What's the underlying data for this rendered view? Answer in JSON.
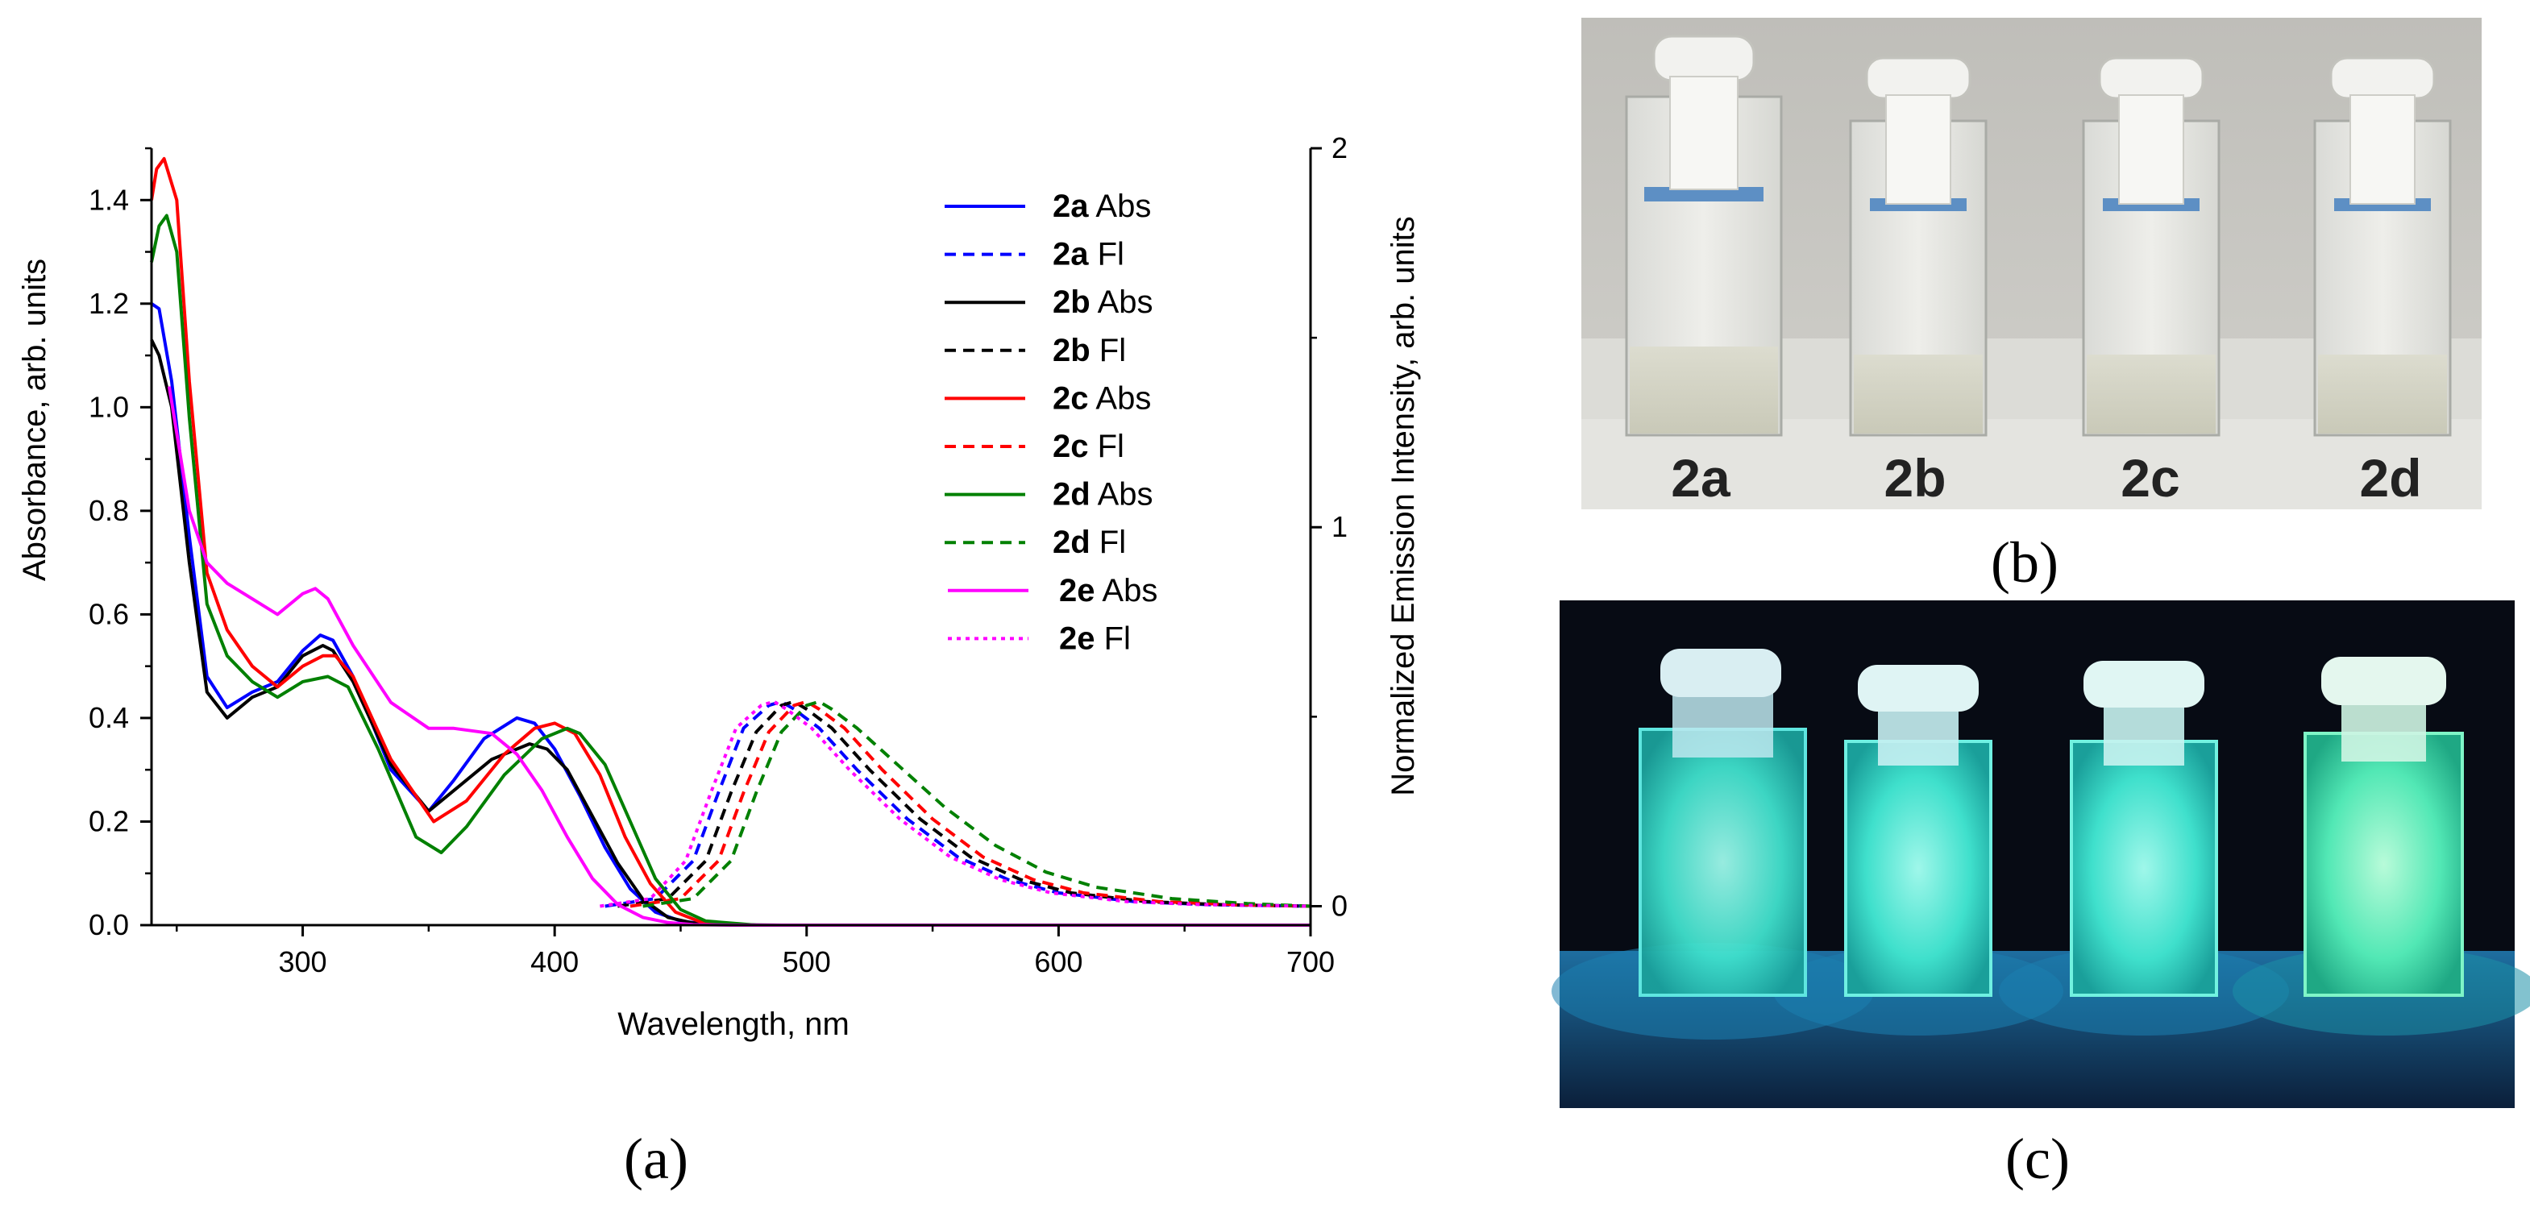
{
  "colors": {
    "2a": "#0000ff",
    "2b": "#000000",
    "2c": "#ff0000",
    "2d": "#008000",
    "2e": "#ff00ff"
  },
  "panels": {
    "a": {
      "label": "(a)"
    },
    "b": {
      "label": "(b)",
      "description_icon": "daylight-cuvettes-photo",
      "vial_labels": [
        "2a",
        "2b",
        "2c",
        "2d"
      ]
    },
    "c": {
      "label": "(c)",
      "description_icon": "uv-fluorescing-cuvettes-photo"
    }
  },
  "chart_data": {
    "type": "line",
    "xlabel": "Wavelength, nm",
    "ylabel": "Absorbance, arb. units",
    "y2label": "Normalized Emission Intensity, arb. units",
    "xlim": [
      240,
      700
    ],
    "ylim": [
      0,
      1.5
    ],
    "y2lim": [
      -0.05,
      2.0
    ],
    "xticks": [
      "300",
      "400",
      "500",
      "600",
      "700"
    ],
    "yticks": [
      "0.0",
      "0.2",
      "0.4",
      "0.6",
      "0.8",
      "1.0",
      "1.2",
      "1.4"
    ],
    "y2ticks": [
      "0",
      "1",
      "2"
    ],
    "grid": false,
    "legend_position": "top-right",
    "series": [
      {
        "name": "2a Abs",
        "compound": "2a",
        "kind": "Abs",
        "axis": "left",
        "style": "solid",
        "x": [
          240,
          243,
          248,
          255,
          262,
          270,
          280,
          290,
          300,
          307,
          312,
          320,
          335,
          350,
          360,
          372,
          385,
          392,
          400,
          410,
          420,
          430,
          440,
          450,
          460,
          480,
          700
        ],
        "y": [
          1.2,
          1.19,
          1.05,
          0.75,
          0.48,
          0.42,
          0.45,
          0.47,
          0.53,
          0.56,
          0.55,
          0.48,
          0.3,
          0.22,
          0.28,
          0.36,
          0.4,
          0.39,
          0.34,
          0.25,
          0.15,
          0.07,
          0.025,
          0.008,
          0.002,
          0.0,
          0.0
        ]
      },
      {
        "name": "2a Fl",
        "compound": "2a",
        "kind": "Fl",
        "axis": "right",
        "style": "dashed",
        "x": [
          420,
          440,
          455,
          465,
          475,
          485,
          490,
          495,
          505,
          520,
          540,
          560,
          580,
          600,
          630,
          660,
          700
        ],
        "y": [
          0,
          0.02,
          0.12,
          0.3,
          0.47,
          0.53,
          0.54,
          0.52,
          0.47,
          0.36,
          0.23,
          0.13,
          0.07,
          0.035,
          0.012,
          0.004,
          0.0
        ]
      },
      {
        "name": "2b Abs",
        "compound": "2b",
        "kind": "Abs",
        "axis": "left",
        "style": "solid",
        "x": [
          240,
          243,
          248,
          255,
          262,
          270,
          280,
          290,
          300,
          308,
          312,
          320,
          335,
          350,
          360,
          375,
          390,
          397,
          405,
          415,
          425,
          435,
          445,
          455,
          465,
          490,
          700
        ],
        "y": [
          1.13,
          1.1,
          1.0,
          0.7,
          0.45,
          0.4,
          0.44,
          0.46,
          0.52,
          0.54,
          0.53,
          0.47,
          0.31,
          0.22,
          0.26,
          0.32,
          0.35,
          0.34,
          0.3,
          0.21,
          0.12,
          0.05,
          0.015,
          0.004,
          0.001,
          0.0,
          0.0
        ]
      },
      {
        "name": "2b Fl",
        "compound": "2b",
        "kind": "Fl",
        "axis": "right",
        "style": "dashed",
        "x": [
          425,
          445,
          460,
          470,
          480,
          490,
          495,
          500,
          510,
          525,
          545,
          565,
          585,
          605,
          635,
          665,
          700
        ],
        "y": [
          0,
          0.02,
          0.12,
          0.3,
          0.46,
          0.53,
          0.54,
          0.52,
          0.47,
          0.36,
          0.23,
          0.13,
          0.07,
          0.035,
          0.012,
          0.004,
          0.0
        ]
      },
      {
        "name": "2c Abs",
        "compound": "2c",
        "kind": "Abs",
        "axis": "left",
        "style": "solid",
        "x": [
          240,
          242,
          245,
          250,
          255,
          262,
          270,
          280,
          290,
          300,
          308,
          313,
          320,
          335,
          352,
          365,
          380,
          392,
          400,
          408,
          418,
          428,
          438,
          448,
          458,
          475,
          700
        ],
        "y": [
          1.4,
          1.46,
          1.48,
          1.4,
          1.05,
          0.68,
          0.57,
          0.5,
          0.46,
          0.5,
          0.52,
          0.52,
          0.48,
          0.32,
          0.2,
          0.24,
          0.33,
          0.38,
          0.39,
          0.37,
          0.29,
          0.17,
          0.08,
          0.025,
          0.006,
          0.0,
          0.0
        ]
      },
      {
        "name": "2c Fl",
        "compound": "2c",
        "kind": "Fl",
        "axis": "right",
        "style": "dashed",
        "x": [
          430,
          450,
          465,
          475,
          485,
          495,
          500,
          505,
          515,
          530,
          550,
          570,
          590,
          610,
          640,
          670,
          700
        ],
        "y": [
          0,
          0.02,
          0.12,
          0.3,
          0.46,
          0.53,
          0.54,
          0.52,
          0.47,
          0.36,
          0.23,
          0.13,
          0.07,
          0.035,
          0.012,
          0.004,
          0.0
        ]
      },
      {
        "name": "2d Abs",
        "compound": "2d",
        "kind": "Abs",
        "axis": "left",
        "style": "solid",
        "x": [
          240,
          243,
          246,
          250,
          255,
          262,
          270,
          280,
          290,
          300,
          310,
          318,
          330,
          345,
          355,
          365,
          380,
          395,
          405,
          410,
          420,
          430,
          440,
          450,
          460,
          480,
          700
        ],
        "y": [
          1.28,
          1.35,
          1.37,
          1.3,
          0.98,
          0.62,
          0.52,
          0.47,
          0.44,
          0.47,
          0.48,
          0.46,
          0.34,
          0.17,
          0.14,
          0.19,
          0.29,
          0.36,
          0.38,
          0.37,
          0.31,
          0.2,
          0.09,
          0.03,
          0.008,
          0.0,
          0.0
        ]
      },
      {
        "name": "2d Fl",
        "compound": "2d",
        "kind": "Fl",
        "axis": "right",
        "style": "dashed",
        "x": [
          435,
          455,
          470,
          480,
          490,
          500,
          505,
          510,
          520,
          535,
          555,
          575,
          595,
          615,
          645,
          675,
          700
        ],
        "y": [
          0,
          0.02,
          0.12,
          0.3,
          0.46,
          0.53,
          0.54,
          0.52,
          0.47,
          0.38,
          0.26,
          0.16,
          0.09,
          0.05,
          0.02,
          0.007,
          0.0
        ]
      },
      {
        "name": "2e Abs",
        "compound": "2e",
        "kind": "Abs",
        "axis": "left",
        "style": "solid",
        "x": [
          247,
          250,
          255,
          262,
          270,
          280,
          290,
          300,
          305,
          310,
          320,
          335,
          350,
          360,
          375,
          385,
          395,
          405,
          415,
          425,
          435,
          445,
          455,
          470,
          700
        ],
        "y": [
          1.04,
          0.95,
          0.8,
          0.7,
          0.66,
          0.63,
          0.6,
          0.64,
          0.65,
          0.63,
          0.54,
          0.43,
          0.38,
          0.38,
          0.37,
          0.33,
          0.26,
          0.17,
          0.09,
          0.04,
          0.015,
          0.005,
          0.001,
          0.0,
          0.0
        ]
      },
      {
        "name": "2e Fl",
        "compound": "2e",
        "kind": "Fl",
        "axis": "right",
        "style": "dotted",
        "x": [
          418,
          438,
          452,
          462,
          472,
          482,
          487,
          492,
          502,
          517,
          537,
          557,
          577,
          597,
          627,
          657,
          700
        ],
        "y": [
          0,
          0.02,
          0.12,
          0.3,
          0.47,
          0.53,
          0.54,
          0.52,
          0.47,
          0.36,
          0.23,
          0.13,
          0.07,
          0.035,
          0.012,
          0.004,
          0.0
        ]
      }
    ],
    "legend": [
      {
        "bold": "2a",
        "text": " Abs",
        "series": "2a Abs"
      },
      {
        "bold": "2a",
        "text": " Fl",
        "series": "2a Fl"
      },
      {
        "bold": "2b",
        "text": " Abs",
        "series": "2b Abs"
      },
      {
        "bold": "2b",
        "text": " Fl",
        "series": "2b Fl"
      },
      {
        "bold": "2c",
        "text": " Abs",
        "series": "2c Abs"
      },
      {
        "bold": "2c",
        "text": " Fl",
        "series": "2c Fl"
      },
      {
        "bold": "2d",
        "text": " Abs",
        "series": "2d Abs"
      },
      {
        "bold": "2d",
        "text": " Fl",
        "series": "2d Fl"
      },
      {
        "bold": "2e",
        "text": " Abs",
        "series": "2e Abs"
      },
      {
        "bold": "2e",
        "text": " Fl",
        "series": "2e Fl"
      }
    ]
  }
}
